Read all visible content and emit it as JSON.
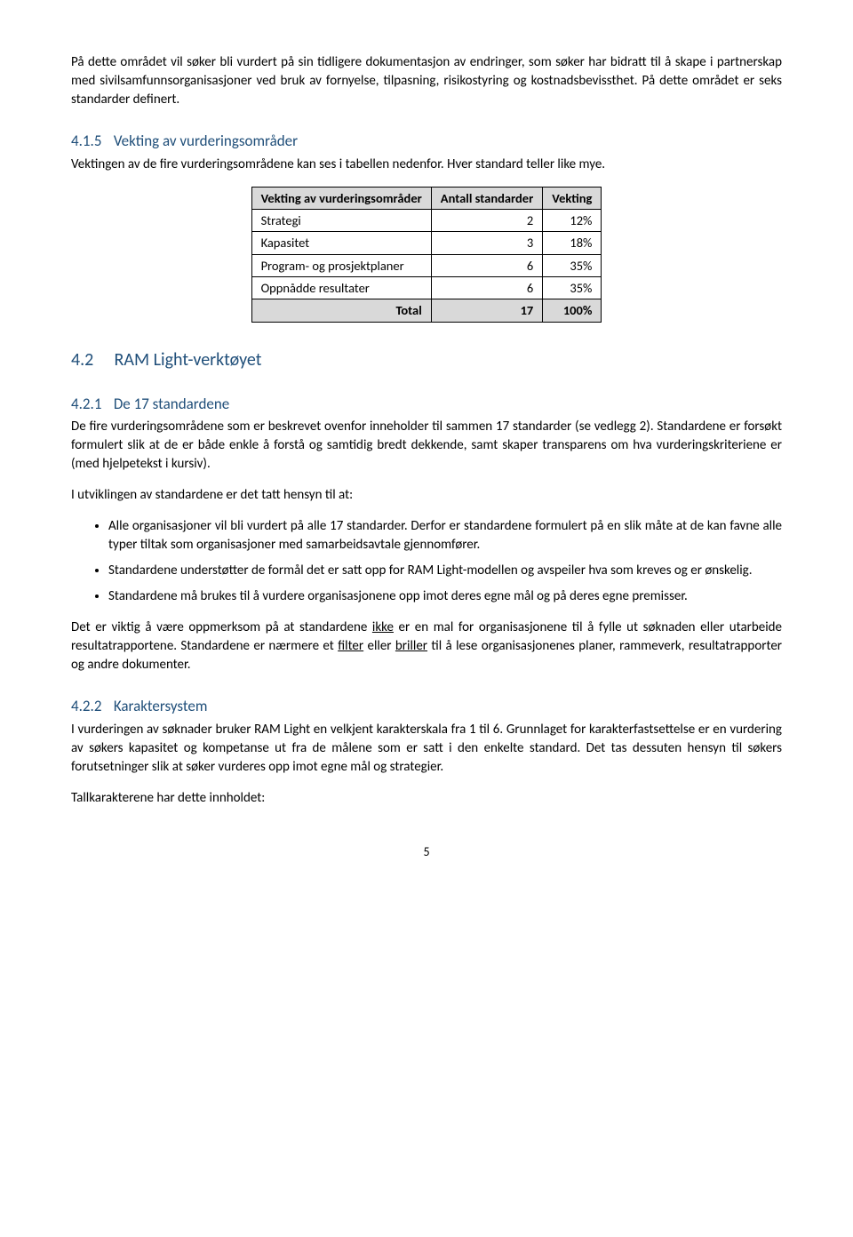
{
  "intro_para": "På dette området vil søker bli vurdert på sin tidligere dokumentasjon av endringer, som søker har bidratt til å skape i partnerskap med sivilsamfunnsorganisasjoner ved bruk av fornyelse, tilpasning, risikostyring og kostnadsbevissthet. På dette området er seks standarder definert.",
  "s415": {
    "num": "4.1.5",
    "title": "Vekting av vurderingsområder",
    "para": "Vektingen av de fire vurderingsområdene kan ses i tabellen nedenfor. Hver standard teller like mye."
  },
  "table": {
    "headers": [
      "Vekting av vurderingsområder",
      "Antall standarder",
      "Vekting"
    ],
    "rows": [
      {
        "label": "Strategi",
        "antall": "2",
        "vekting": "12%"
      },
      {
        "label": "Kapasitet",
        "antall": "3",
        "vekting": "18%"
      },
      {
        "label": "Program- og prosjektplaner",
        "antall": "6",
        "vekting": "35%"
      },
      {
        "label": "Oppnådde resultater",
        "antall": "6",
        "vekting": "35%"
      }
    ],
    "total": {
      "label": "Total",
      "antall": "17",
      "vekting": "100%"
    }
  },
  "s42": {
    "num": "4.2",
    "title": "RAM Light-verktøyet"
  },
  "s421": {
    "num": "4.2.1",
    "title": "De 17 standardene",
    "para1": "De fire vurderingsområdene som er beskrevet ovenfor inneholder til sammen 17 standarder (se vedlegg 2). Standardene er forsøkt formulert slik at de er både enkle å forstå og samtidig bredt dekkende, samt skaper transparens om hva vurderingskriteriene er (med hjelpetekst i kursiv).",
    "para2": "I utviklingen av standardene er det tatt hensyn til at:",
    "bullets": [
      "Alle organisasjoner vil bli vurdert på alle 17 standarder. Derfor er standardene formulert på en slik måte at de kan favne alle typer tiltak som organisasjoner med samarbeidsavtale gjennomfører.",
      "Standardene understøtter de formål det er satt opp for RAM Light-modellen og avspeiler hva som kreves og er ønskelig.",
      "Standardene må brukes til å vurdere organisasjonene opp imot deres egne mål og på deres egne premisser."
    ],
    "para3_a": "Det er viktig å være oppmerksom på at standardene ",
    "para3_u1": "ikke",
    "para3_b": " er en mal for organisasjonene til å fylle ut søknaden eller utarbeide resultatrapportene. Standardene er nærmere et ",
    "para3_u2": "filter",
    "para3_c": " eller ",
    "para3_u3": "briller",
    "para3_d": " til å lese organisasjonenes planer, rammeverk, resultatrapporter og andre dokumenter."
  },
  "s422": {
    "num": "4.2.2",
    "title": "Karaktersystem",
    "para1": "I vurderingen av søknader bruker RAM Light en velkjent karakterskala fra 1 til 6. Grunnlaget for karakterfastsettelse er en vurdering av søkers kapasitet og kompetanse ut fra de målene som er satt i den enkelte standard. Det tas dessuten hensyn til søkers forutsetninger slik at søker vurderes opp imot egne mål og strategier.",
    "para2": "Tallkarakterene har dette innholdet:"
  },
  "page_number": "5"
}
